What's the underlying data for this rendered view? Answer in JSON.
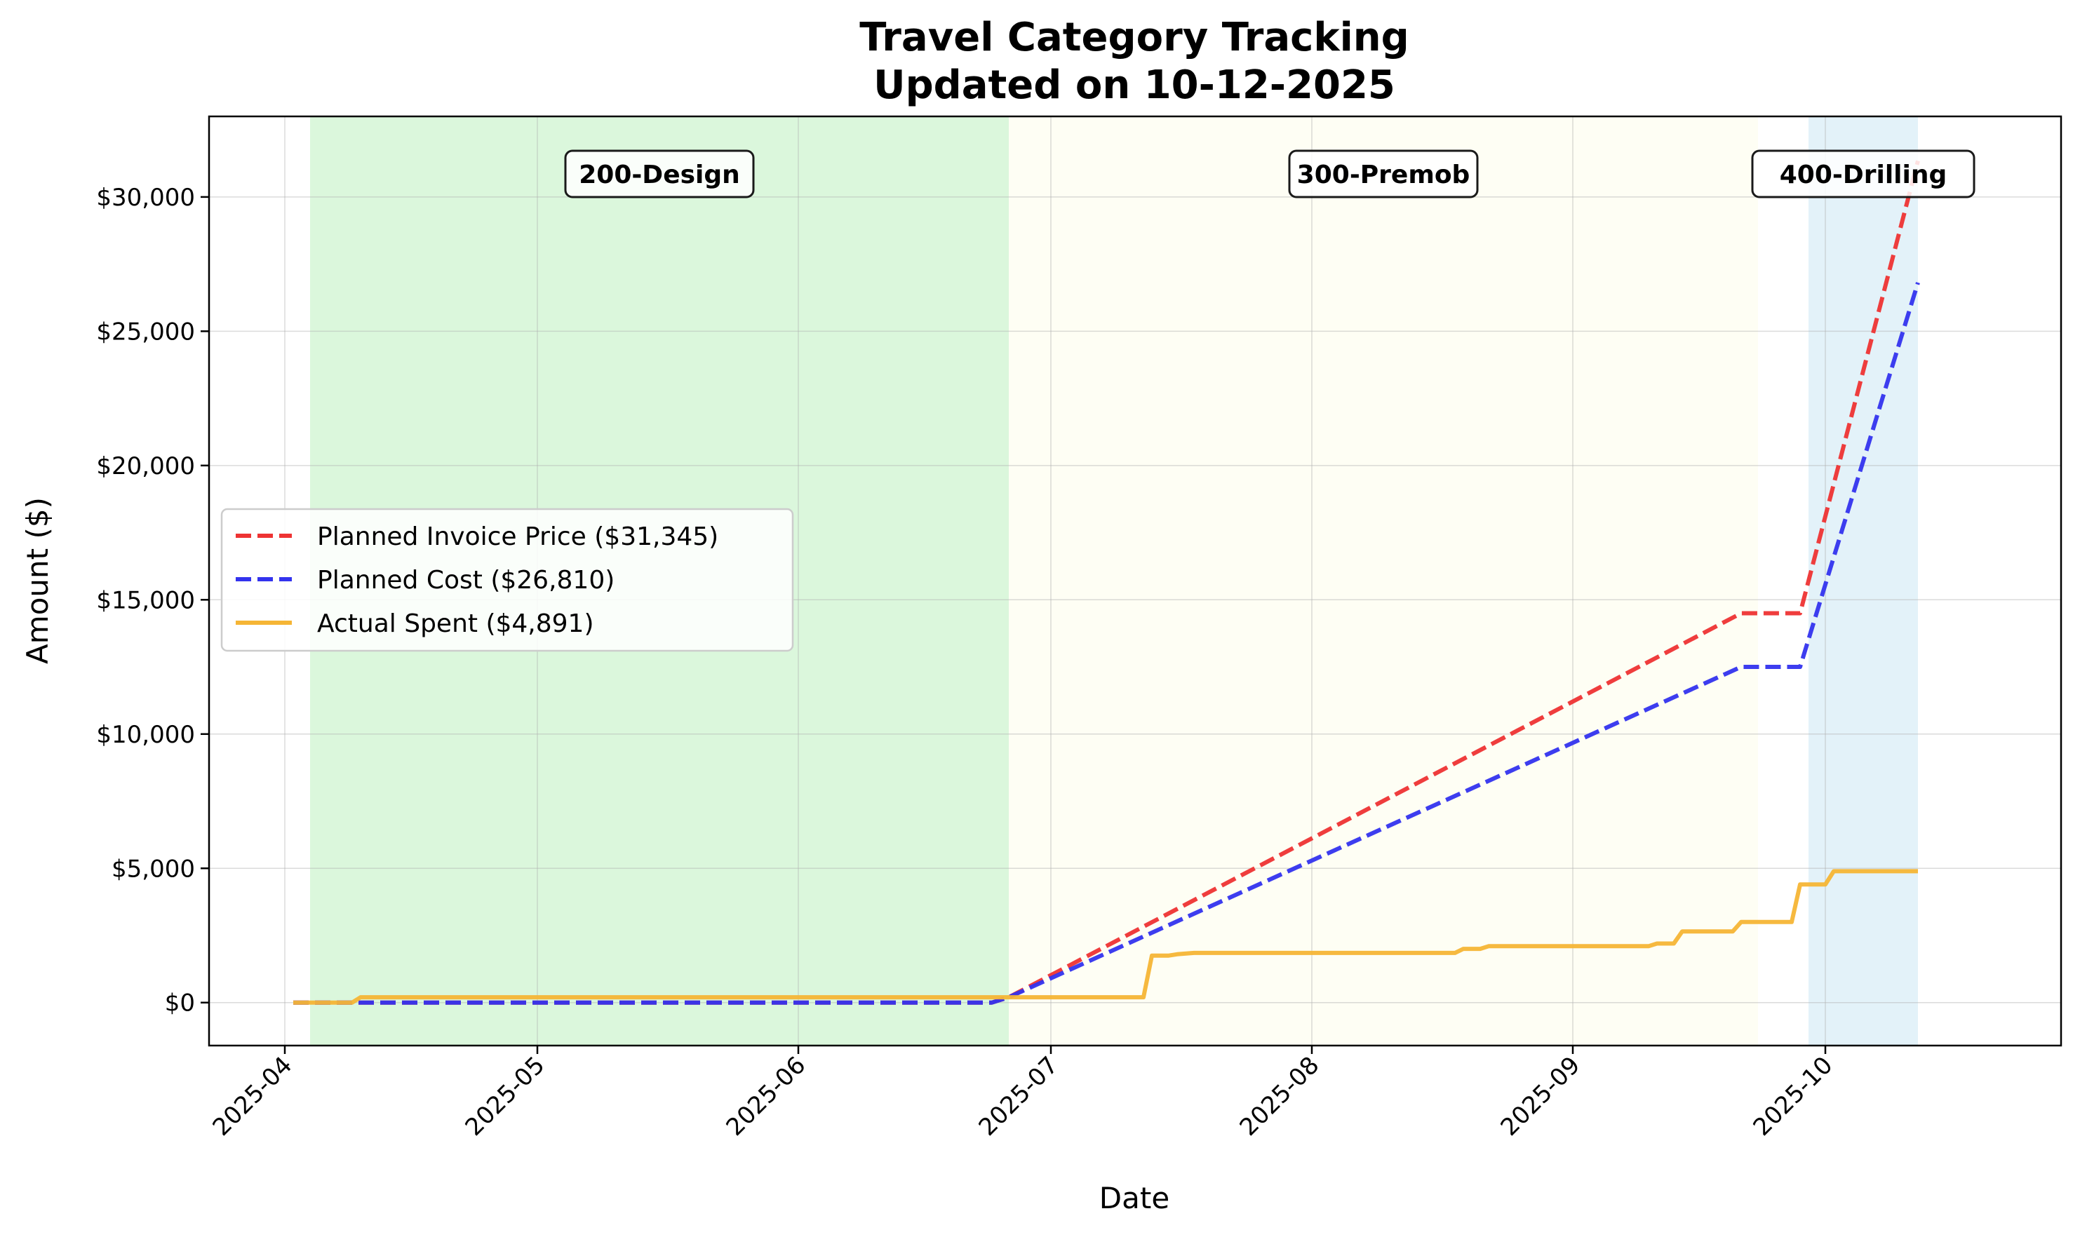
{
  "chart_data": {
    "type": "line",
    "title": "Travel Category Tracking",
    "subtitle": "Updated on 10-12-2025",
    "xlabel": "Date",
    "ylabel": "Amount ($)",
    "x_range": [
      "2025-03-23",
      "2025-10-29"
    ],
    "ylim": [
      -1600,
      33000
    ],
    "x_ticks": [
      "2025-04",
      "2025-05",
      "2025-06",
      "2025-07",
      "2025-08",
      "2025-09",
      "2025-10"
    ],
    "y_ticks": [
      0,
      5000,
      10000,
      15000,
      20000,
      25000,
      30000
    ],
    "y_tick_labels": [
      "$0",
      "$5,000",
      "$10,000",
      "$15,000",
      "$20,000",
      "$25,000",
      "$30,000"
    ],
    "grid": true,
    "legend_position": "center-left",
    "phases": [
      {
        "label": "200-Design",
        "start": "2025-04-04",
        "end": "2025-06-26",
        "color": "#dbf7dc"
      },
      {
        "label": "300-Premob",
        "start": "2025-06-26",
        "end": "2025-09-23",
        "color": "#fefef4"
      },
      {
        "label": "400-Drilling",
        "start": "2025-09-29",
        "end": "2025-10-12",
        "color": "#e3f2f9"
      }
    ],
    "series": [
      {
        "name": "Planned Invoice Price ($31,345)",
        "color": "#ee3333",
        "dash": true,
        "points": [
          [
            "2025-04-02",
            0
          ],
          [
            "2025-06-24",
            0
          ],
          [
            "2025-06-26",
            200
          ],
          [
            "2025-09-21",
            14500
          ],
          [
            "2025-09-28",
            14500
          ],
          [
            "2025-10-12",
            31345
          ]
        ]
      },
      {
        "name": "Planned Cost ($26,810)",
        "color": "#3333ee",
        "dash": true,
        "points": [
          [
            "2025-04-02",
            0
          ],
          [
            "2025-06-24",
            0
          ],
          [
            "2025-06-26",
            200
          ],
          [
            "2025-09-21",
            12500
          ],
          [
            "2025-09-28",
            12500
          ],
          [
            "2025-10-12",
            26810
          ]
        ]
      },
      {
        "name": "Actual Spent ($4,891)",
        "color": "#f5b535",
        "dash": false,
        "points": [
          [
            "2025-04-02",
            0
          ],
          [
            "2025-04-09",
            0
          ],
          [
            "2025-04-10",
            200
          ],
          [
            "2025-07-12",
            200
          ],
          [
            "2025-07-13",
            1750
          ],
          [
            "2025-07-15",
            1750
          ],
          [
            "2025-07-16",
            1800
          ],
          [
            "2025-07-18",
            1850
          ],
          [
            "2025-08-18",
            1850
          ],
          [
            "2025-08-19",
            2000
          ],
          [
            "2025-08-21",
            2000
          ],
          [
            "2025-08-22",
            2100
          ],
          [
            "2025-09-10",
            2100
          ],
          [
            "2025-09-11",
            2200
          ],
          [
            "2025-09-13",
            2200
          ],
          [
            "2025-09-14",
            2650
          ],
          [
            "2025-09-20",
            2650
          ],
          [
            "2025-09-21",
            3000
          ],
          [
            "2025-09-27",
            3000
          ],
          [
            "2025-09-28",
            4400
          ],
          [
            "2025-10-01",
            4400
          ],
          [
            "2025-10-02",
            4891
          ],
          [
            "2025-10-12",
            4891
          ]
        ]
      }
    ]
  }
}
